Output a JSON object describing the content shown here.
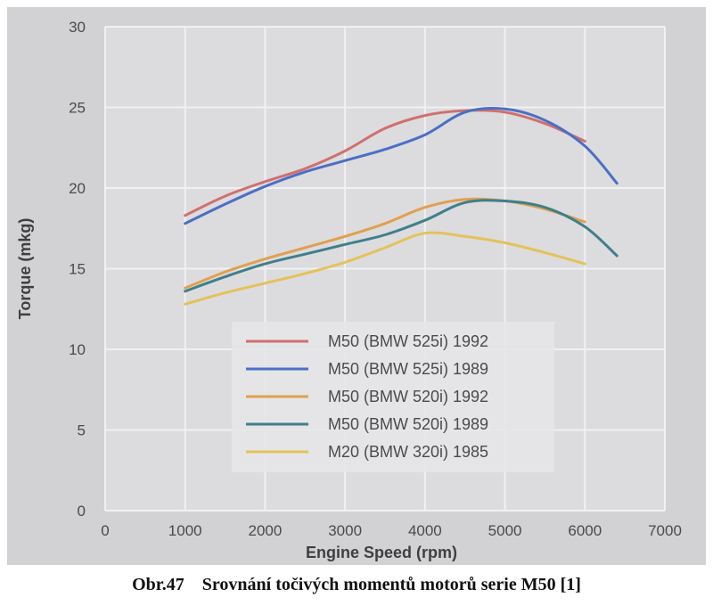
{
  "caption": "Obr.47    Srovnání točivých momentů motorů serie M50 [1]",
  "colors": {
    "background": "#d2d2d4",
    "plot_area": "#dcdcde",
    "grid": "#f1f1f3"
  },
  "chart_data": {
    "type": "line",
    "title": "",
    "xlabel": "Engine Speed (rpm)",
    "ylabel": "Torque (mkg)",
    "xlim": [
      0,
      7000
    ],
    "ylim": [
      0,
      30
    ],
    "xticks": [
      0,
      1000,
      2000,
      3000,
      4000,
      5000,
      6000,
      7000
    ],
    "yticks": [
      0,
      5,
      10,
      15,
      20,
      25,
      30
    ],
    "grid": true,
    "legend_position": "bottom-center",
    "series": [
      {
        "name": "M50 (BMW 525i) 1992",
        "color": "#d0706f",
        "x": [
          1000,
          1500,
          2000,
          2500,
          3000,
          3500,
          4000,
          4500,
          5000,
          5500,
          6000
        ],
        "y": [
          18.3,
          19.5,
          20.4,
          21.2,
          22.3,
          23.7,
          24.5,
          24.8,
          24.7,
          24.0,
          22.9
        ]
      },
      {
        "name": "M50 (BMW 525i) 1989",
        "color": "#4b6fc4",
        "x": [
          1000,
          1500,
          2000,
          2500,
          3000,
          3500,
          4000,
          4500,
          5000,
          5500,
          6000,
          6400
        ],
        "y": [
          17.8,
          19.0,
          20.1,
          21.0,
          21.7,
          22.4,
          23.3,
          24.7,
          24.9,
          24.2,
          22.6,
          20.3
        ]
      },
      {
        "name": "M50 (BMW 520i) 1992",
        "color": "#e0a050",
        "x": [
          1000,
          1500,
          2000,
          2500,
          3000,
          3500,
          4000,
          4500,
          5000,
          5500,
          6000
        ],
        "y": [
          13.8,
          14.8,
          15.6,
          16.3,
          17.0,
          17.8,
          18.8,
          19.3,
          19.2,
          18.7,
          17.9
        ]
      },
      {
        "name": "M50 (BMW 520i) 1989",
        "color": "#3f7f8a",
        "x": [
          1000,
          1500,
          2000,
          2500,
          3000,
          3500,
          4000,
          4500,
          5000,
          5500,
          6000,
          6400
        ],
        "y": [
          13.6,
          14.5,
          15.3,
          15.9,
          16.5,
          17.1,
          18.0,
          19.1,
          19.2,
          18.8,
          17.6,
          15.8
        ]
      },
      {
        "name": "M20 (BMW 320i) 1985",
        "color": "#e4c25a",
        "x": [
          1000,
          1500,
          2000,
          2500,
          3000,
          3500,
          4000,
          4500,
          5000,
          5500,
          6000
        ],
        "y": [
          12.8,
          13.5,
          14.1,
          14.7,
          15.4,
          16.3,
          17.2,
          17.0,
          16.6,
          16.0,
          15.3
        ]
      }
    ]
  }
}
